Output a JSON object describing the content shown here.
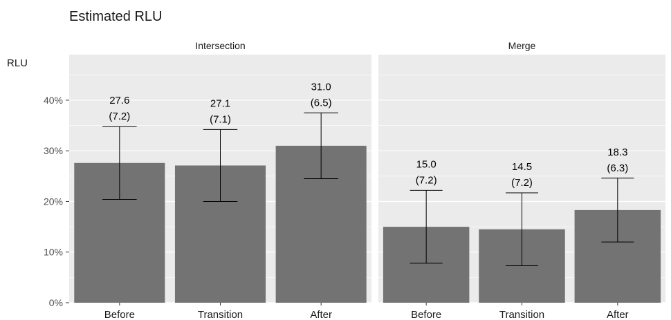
{
  "chart_data": {
    "type": "bar",
    "title": "Estimated RLU",
    "ylabel": "RLU",
    "xlabel": "",
    "ylim": [
      0,
      0.49
    ],
    "y_ticks": [
      0,
      0.1,
      0.2,
      0.3,
      0.4
    ],
    "y_tick_labels": [
      "0%",
      "10%",
      "20%",
      "30%",
      "40%"
    ],
    "grid": true,
    "colors": {
      "bar": "#737373",
      "panel": "#ebebeb",
      "grid": "#ffffff",
      "errorbar": "#000000"
    },
    "facets": [
      {
        "name": "Intersection",
        "categories": [
          "Before",
          "Transition",
          "After"
        ],
        "values": [
          27.6,
          27.1,
          31.0
        ],
        "value_labels": [
          "27.6",
          "27.1",
          "31.0"
        ],
        "se_labels": [
          "(7.2)",
          "(7.1)",
          "(6.5)"
        ],
        "error_low": [
          20.4,
          20.0,
          24.5
        ],
        "error_high": [
          34.8,
          34.2,
          37.5
        ]
      },
      {
        "name": "Merge",
        "categories": [
          "Before",
          "Transition",
          "After"
        ],
        "values": [
          15.0,
          14.5,
          18.3
        ],
        "value_labels": [
          "15.0",
          "14.5",
          "18.3"
        ],
        "se_labels": [
          "(7.2)",
          "(7.2)",
          "(6.3)"
        ],
        "error_low": [
          7.8,
          7.3,
          12.0
        ],
        "error_high": [
          22.2,
          21.7,
          24.6
        ]
      }
    ]
  }
}
